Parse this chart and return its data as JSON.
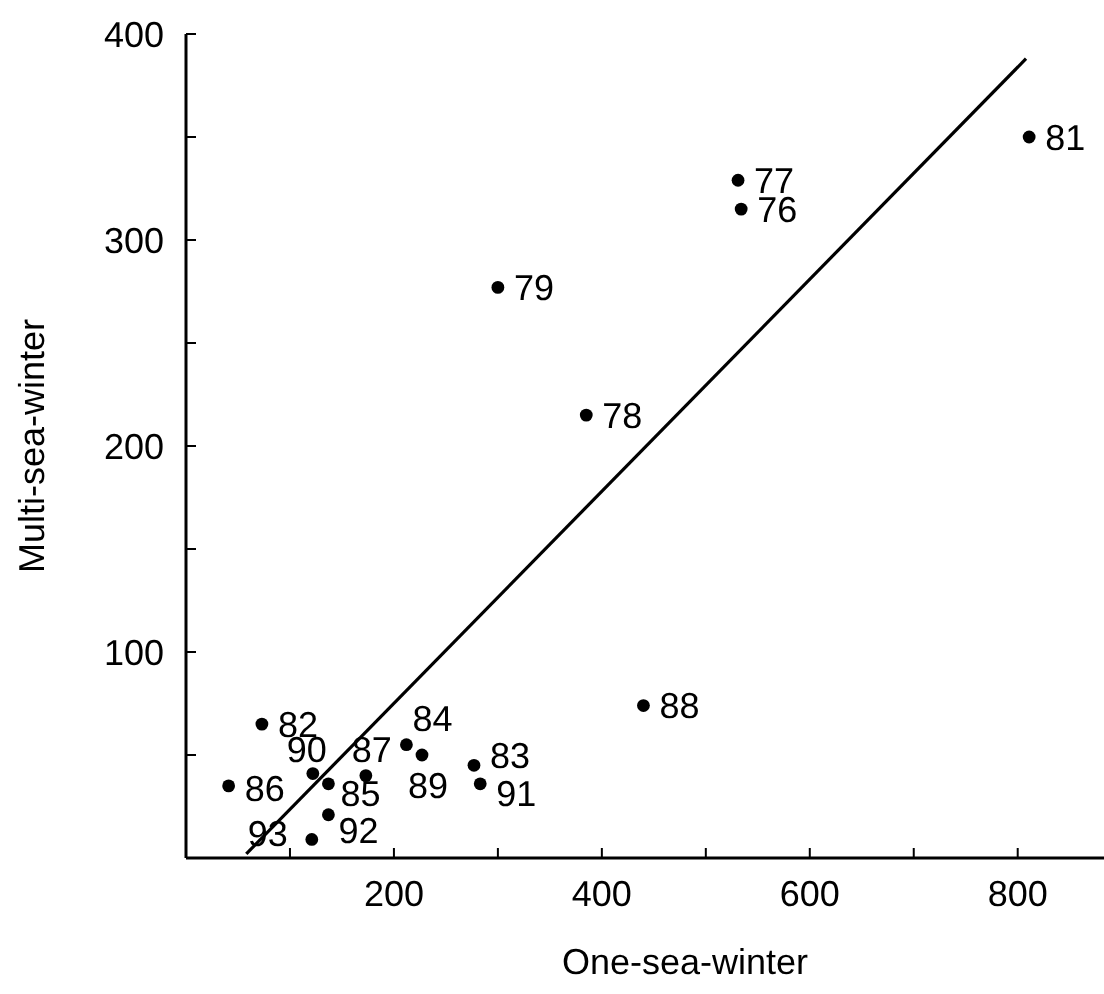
{
  "chart_data": {
    "type": "scatter",
    "xlabel": "One-sea-winter",
    "ylabel": "Multi-sea-winter",
    "xlim": [
      0,
      883
    ],
    "ylim": [
      0,
      400
    ],
    "xticks": [
      {
        "value": 100,
        "label": null
      },
      200,
      {
        "value": 300,
        "label": null
      },
      400,
      {
        "value": 500,
        "label": null
      },
      600,
      {
        "value": 700,
        "label": null
      },
      800
    ],
    "yticks": [
      {
        "value": 50,
        "label": null
      },
      100,
      {
        "value": 150,
        "label": null
      },
      200,
      {
        "value": 250,
        "label": null
      },
      300,
      {
        "value": 350,
        "label": null
      },
      400
    ],
    "grid": false,
    "series": [
      {
        "color": "#000000",
        "marker": "circle",
        "x": [
          811,
          531,
          534,
          300,
          385,
          440,
          73,
          212,
          173,
          227,
          137,
          122,
          277,
          283,
          41,
          137,
          121
        ],
        "values": [
          350,
          329,
          315,
          277,
          215,
          74,
          65,
          55,
          40,
          50,
          36,
          41,
          45,
          36,
          35,
          21,
          9
        ]
      },
      {
        "type": "line",
        "color": "#000000",
        "marker": "none",
        "line_style": "solid",
        "x": [
          58,
          808
        ],
        "values": [
          2,
          388
        ]
      }
    ],
    "annotations": [
      {
        "text": "81",
        "x": 811,
        "y": 350
      },
      {
        "text": "77",
        "x": 531,
        "y": 329
      },
      {
        "text": "76",
        "x": 534,
        "y": 315
      },
      {
        "text": "79",
        "x": 300,
        "y": 277
      },
      {
        "text": "78",
        "x": 385,
        "y": 215
      },
      {
        "text": "88",
        "x": 440,
        "y": 74
      },
      {
        "text": "82",
        "x": 73,
        "y": 65
      },
      {
        "text": "84",
        "x": 212,
        "y": 55
      },
      {
        "text": "87",
        "x": 173,
        "y": 40
      },
      {
        "text": "89",
        "x": 227,
        "y": 50
      },
      {
        "text": "85",
        "x": 137,
        "y": 36
      },
      {
        "text": "90",
        "x": 122,
        "y": 41
      },
      {
        "text": "83",
        "x": 277,
        "y": 45
      },
      {
        "text": "91",
        "x": 283,
        "y": 36
      },
      {
        "text": "86",
        "x": 41,
        "y": 35
      },
      {
        "text": "92",
        "x": 137,
        "y": 21
      },
      {
        "text": "93",
        "x": 121,
        "y": 9
      }
    ]
  }
}
